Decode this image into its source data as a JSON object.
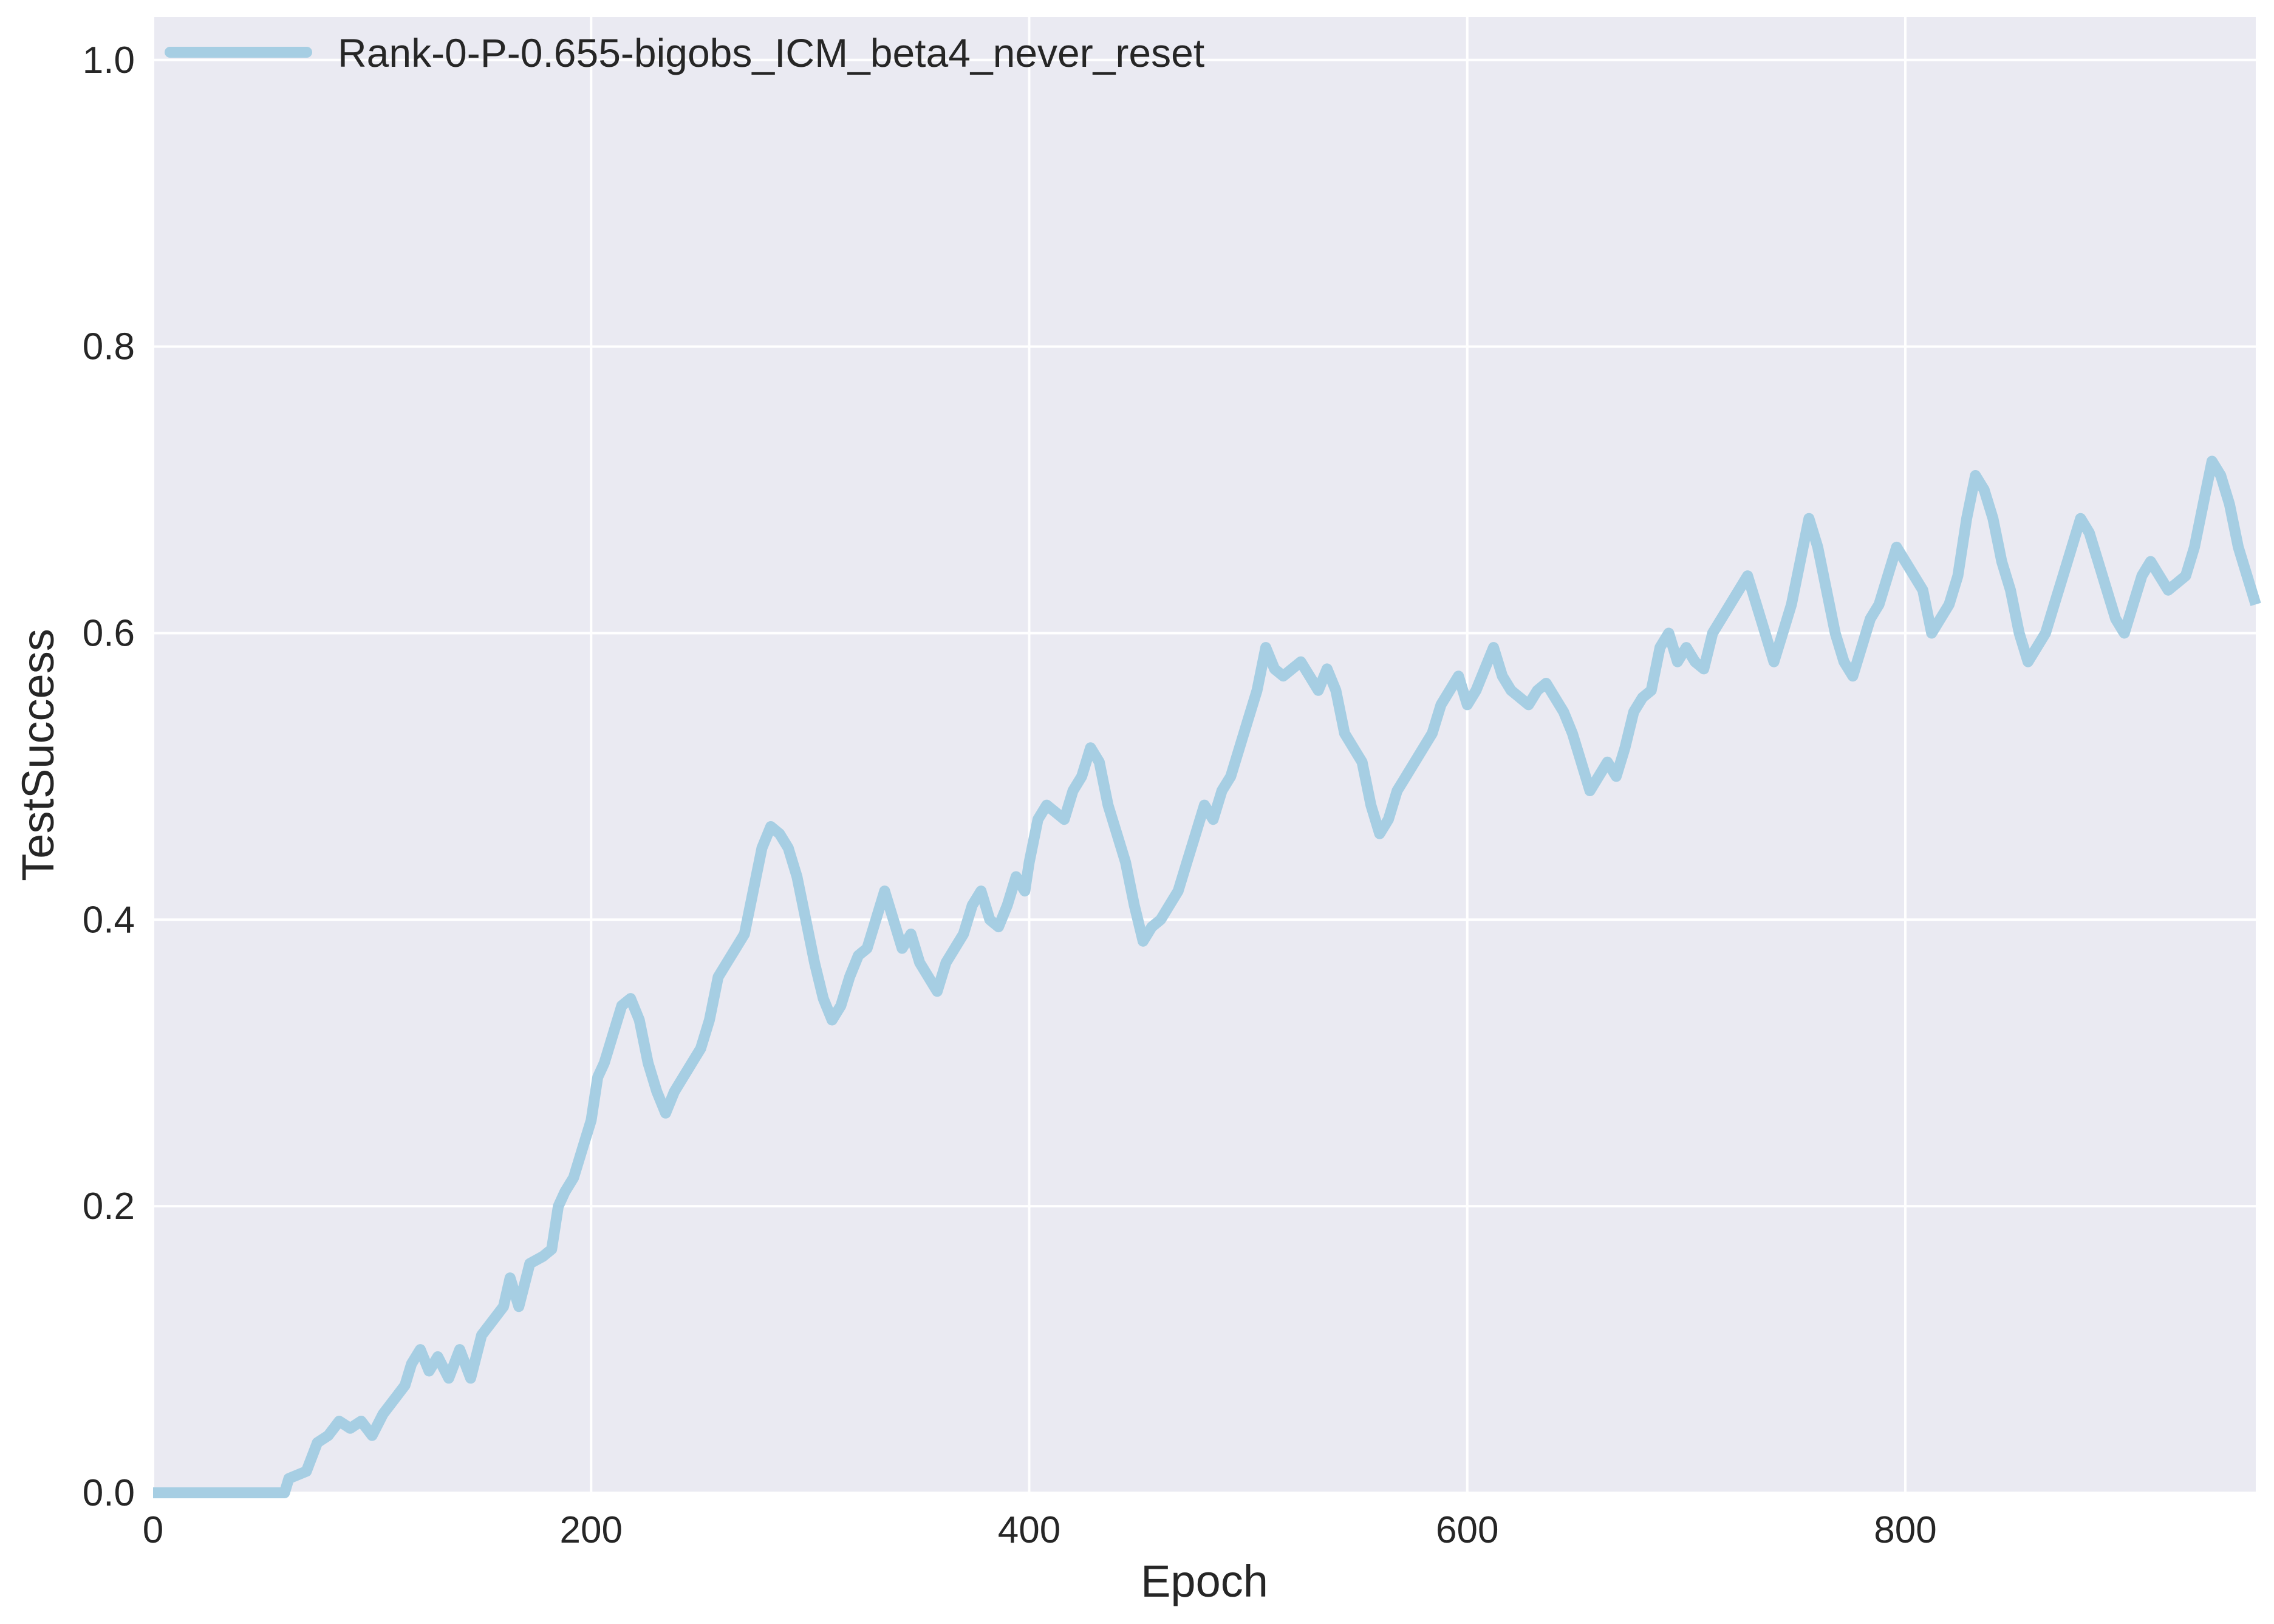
{
  "chart_data": {
    "type": "line",
    "xlabel": "Epoch",
    "ylabel": "TestSuccess",
    "xlim": [
      0,
      960
    ],
    "ylim": [
      0,
      1.03
    ],
    "xticks": [
      0,
      200,
      400,
      600,
      800
    ],
    "xtick_labels": [
      "0",
      "200",
      "400",
      "600",
      "800"
    ],
    "yticks": [
      0.0,
      0.2,
      0.4,
      0.6,
      0.8,
      1.0
    ],
    "ytick_labels": [
      "0.0",
      "0.2",
      "0.4",
      "0.6",
      "0.8",
      "1.0"
    ],
    "grid": true,
    "legend_position": "top-left",
    "colors": {
      "background": "#eaeaf2",
      "grid": "#ffffff",
      "series": "#a6cee3",
      "text": "#262626"
    },
    "series": [
      {
        "name": "Rank-0-P-0.655-bigobs_ICM_beta4_never_reset",
        "points": [
          [
            0,
            0.0
          ],
          [
            30,
            0.0
          ],
          [
            60,
            0.0
          ],
          [
            62,
            0.01
          ],
          [
            70,
            0.015
          ],
          [
            75,
            0.035
          ],
          [
            80,
            0.04
          ],
          [
            85,
            0.05
          ],
          [
            90,
            0.045
          ],
          [
            95,
            0.05
          ],
          [
            100,
            0.04
          ],
          [
            105,
            0.055
          ],
          [
            110,
            0.065
          ],
          [
            115,
            0.075
          ],
          [
            118,
            0.09
          ],
          [
            122,
            0.1
          ],
          [
            126,
            0.085
          ],
          [
            130,
            0.095
          ],
          [
            135,
            0.08
          ],
          [
            140,
            0.1
          ],
          [
            145,
            0.08
          ],
          [
            150,
            0.11
          ],
          [
            155,
            0.12
          ],
          [
            160,
            0.13
          ],
          [
            163,
            0.15
          ],
          [
            167,
            0.13
          ],
          [
            172,
            0.16
          ],
          [
            178,
            0.165
          ],
          [
            182,
            0.17
          ],
          [
            185,
            0.2
          ],
          [
            188,
            0.21
          ],
          [
            192,
            0.22
          ],
          [
            196,
            0.24
          ],
          [
            200,
            0.26
          ],
          [
            203,
            0.29
          ],
          [
            206,
            0.3
          ],
          [
            210,
            0.32
          ],
          [
            214,
            0.34
          ],
          [
            218,
            0.345
          ],
          [
            222,
            0.33
          ],
          [
            226,
            0.3
          ],
          [
            230,
            0.28
          ],
          [
            234,
            0.265
          ],
          [
            238,
            0.28
          ],
          [
            242,
            0.29
          ],
          [
            246,
            0.3
          ],
          [
            250,
            0.31
          ],
          [
            254,
            0.33
          ],
          [
            258,
            0.36
          ],
          [
            262,
            0.37
          ],
          [
            266,
            0.38
          ],
          [
            270,
            0.39
          ],
          [
            274,
            0.42
          ],
          [
            278,
            0.45
          ],
          [
            282,
            0.465
          ],
          [
            286,
            0.46
          ],
          [
            290,
            0.45
          ],
          [
            294,
            0.43
          ],
          [
            298,
            0.4
          ],
          [
            302,
            0.37
          ],
          [
            306,
            0.345
          ],
          [
            310,
            0.33
          ],
          [
            314,
            0.34
          ],
          [
            318,
            0.36
          ],
          [
            322,
            0.375
          ],
          [
            326,
            0.38
          ],
          [
            330,
            0.4
          ],
          [
            334,
            0.42
          ],
          [
            338,
            0.4
          ],
          [
            342,
            0.38
          ],
          [
            346,
            0.39
          ],
          [
            350,
            0.37
          ],
          [
            354,
            0.36
          ],
          [
            358,
            0.35
          ],
          [
            362,
            0.37
          ],
          [
            366,
            0.38
          ],
          [
            370,
            0.39
          ],
          [
            374,
            0.41
          ],
          [
            378,
            0.42
          ],
          [
            382,
            0.4
          ],
          [
            386,
            0.395
          ],
          [
            390,
            0.41
          ],
          [
            394,
            0.43
          ],
          [
            398,
            0.42
          ],
          [
            400,
            0.44
          ],
          [
            404,
            0.47
          ],
          [
            408,
            0.48
          ],
          [
            412,
            0.475
          ],
          [
            416,
            0.47
          ],
          [
            420,
            0.49
          ],
          [
            424,
            0.5
          ],
          [
            428,
            0.52
          ],
          [
            432,
            0.51
          ],
          [
            436,
            0.48
          ],
          [
            440,
            0.46
          ],
          [
            444,
            0.44
          ],
          [
            448,
            0.41
          ],
          [
            452,
            0.385
          ],
          [
            456,
            0.395
          ],
          [
            460,
            0.4
          ],
          [
            464,
            0.41
          ],
          [
            468,
            0.42
          ],
          [
            472,
            0.44
          ],
          [
            476,
            0.46
          ],
          [
            480,
            0.48
          ],
          [
            484,
            0.47
          ],
          [
            488,
            0.49
          ],
          [
            492,
            0.5
          ],
          [
            496,
            0.52
          ],
          [
            500,
            0.54
          ],
          [
            504,
            0.56
          ],
          [
            508,
            0.59
          ],
          [
            512,
            0.575
          ],
          [
            516,
            0.57
          ],
          [
            520,
            0.575
          ],
          [
            524,
            0.58
          ],
          [
            528,
            0.57
          ],
          [
            532,
            0.56
          ],
          [
            536,
            0.575
          ],
          [
            540,
            0.56
          ],
          [
            544,
            0.53
          ],
          [
            548,
            0.52
          ],
          [
            552,
            0.51
          ],
          [
            556,
            0.48
          ],
          [
            560,
            0.46
          ],
          [
            564,
            0.47
          ],
          [
            568,
            0.49
          ],
          [
            572,
            0.5
          ],
          [
            576,
            0.51
          ],
          [
            580,
            0.52
          ],
          [
            584,
            0.53
          ],
          [
            588,
            0.55
          ],
          [
            592,
            0.56
          ],
          [
            596,
            0.57
          ],
          [
            600,
            0.55
          ],
          [
            604,
            0.56
          ],
          [
            608,
            0.575
          ],
          [
            612,
            0.59
          ],
          [
            616,
            0.57
          ],
          [
            620,
            0.56
          ],
          [
            624,
            0.555
          ],
          [
            628,
            0.55
          ],
          [
            632,
            0.56
          ],
          [
            636,
            0.565
          ],
          [
            640,
            0.555
          ],
          [
            644,
            0.545
          ],
          [
            648,
            0.53
          ],
          [
            652,
            0.51
          ],
          [
            656,
            0.49
          ],
          [
            660,
            0.5
          ],
          [
            664,
            0.51
          ],
          [
            668,
            0.5
          ],
          [
            672,
            0.52
          ],
          [
            676,
            0.545
          ],
          [
            680,
            0.555
          ],
          [
            684,
            0.56
          ],
          [
            688,
            0.59
          ],
          [
            692,
            0.6
          ],
          [
            696,
            0.58
          ],
          [
            700,
            0.59
          ],
          [
            704,
            0.58
          ],
          [
            708,
            0.575
          ],
          [
            712,
            0.6
          ],
          [
            716,
            0.61
          ],
          [
            720,
            0.62
          ],
          [
            724,
            0.63
          ],
          [
            728,
            0.64
          ],
          [
            732,
            0.62
          ],
          [
            736,
            0.6
          ],
          [
            740,
            0.58
          ],
          [
            744,
            0.6
          ],
          [
            748,
            0.62
          ],
          [
            752,
            0.65
          ],
          [
            756,
            0.68
          ],
          [
            760,
            0.66
          ],
          [
            764,
            0.63
          ],
          [
            768,
            0.6
          ],
          [
            772,
            0.58
          ],
          [
            776,
            0.57
          ],
          [
            780,
            0.59
          ],
          [
            784,
            0.61
          ],
          [
            788,
            0.62
          ],
          [
            792,
            0.64
          ],
          [
            796,
            0.66
          ],
          [
            800,
            0.65
          ],
          [
            804,
            0.64
          ],
          [
            808,
            0.63
          ],
          [
            812,
            0.6
          ],
          [
            816,
            0.61
          ],
          [
            820,
            0.62
          ],
          [
            824,
            0.64
          ],
          [
            828,
            0.68
          ],
          [
            832,
            0.71
          ],
          [
            836,
            0.7
          ],
          [
            840,
            0.68
          ],
          [
            844,
            0.65
          ],
          [
            848,
            0.63
          ],
          [
            852,
            0.6
          ],
          [
            856,
            0.58
          ],
          [
            860,
            0.59
          ],
          [
            864,
            0.6
          ],
          [
            868,
            0.62
          ],
          [
            872,
            0.64
          ],
          [
            876,
            0.66
          ],
          [
            880,
            0.68
          ],
          [
            884,
            0.67
          ],
          [
            888,
            0.65
          ],
          [
            892,
            0.63
          ],
          [
            896,
            0.61
          ],
          [
            900,
            0.6
          ],
          [
            904,
            0.62
          ],
          [
            908,
            0.64
          ],
          [
            912,
            0.65
          ],
          [
            916,
            0.64
          ],
          [
            920,
            0.63
          ],
          [
            924,
            0.635
          ],
          [
            928,
            0.64
          ],
          [
            932,
            0.66
          ],
          [
            936,
            0.69
          ],
          [
            940,
            0.72
          ],
          [
            944,
            0.71
          ],
          [
            948,
            0.69
          ],
          [
            952,
            0.66
          ],
          [
            956,
            0.64
          ],
          [
            960,
            0.62
          ]
        ]
      }
    ]
  }
}
